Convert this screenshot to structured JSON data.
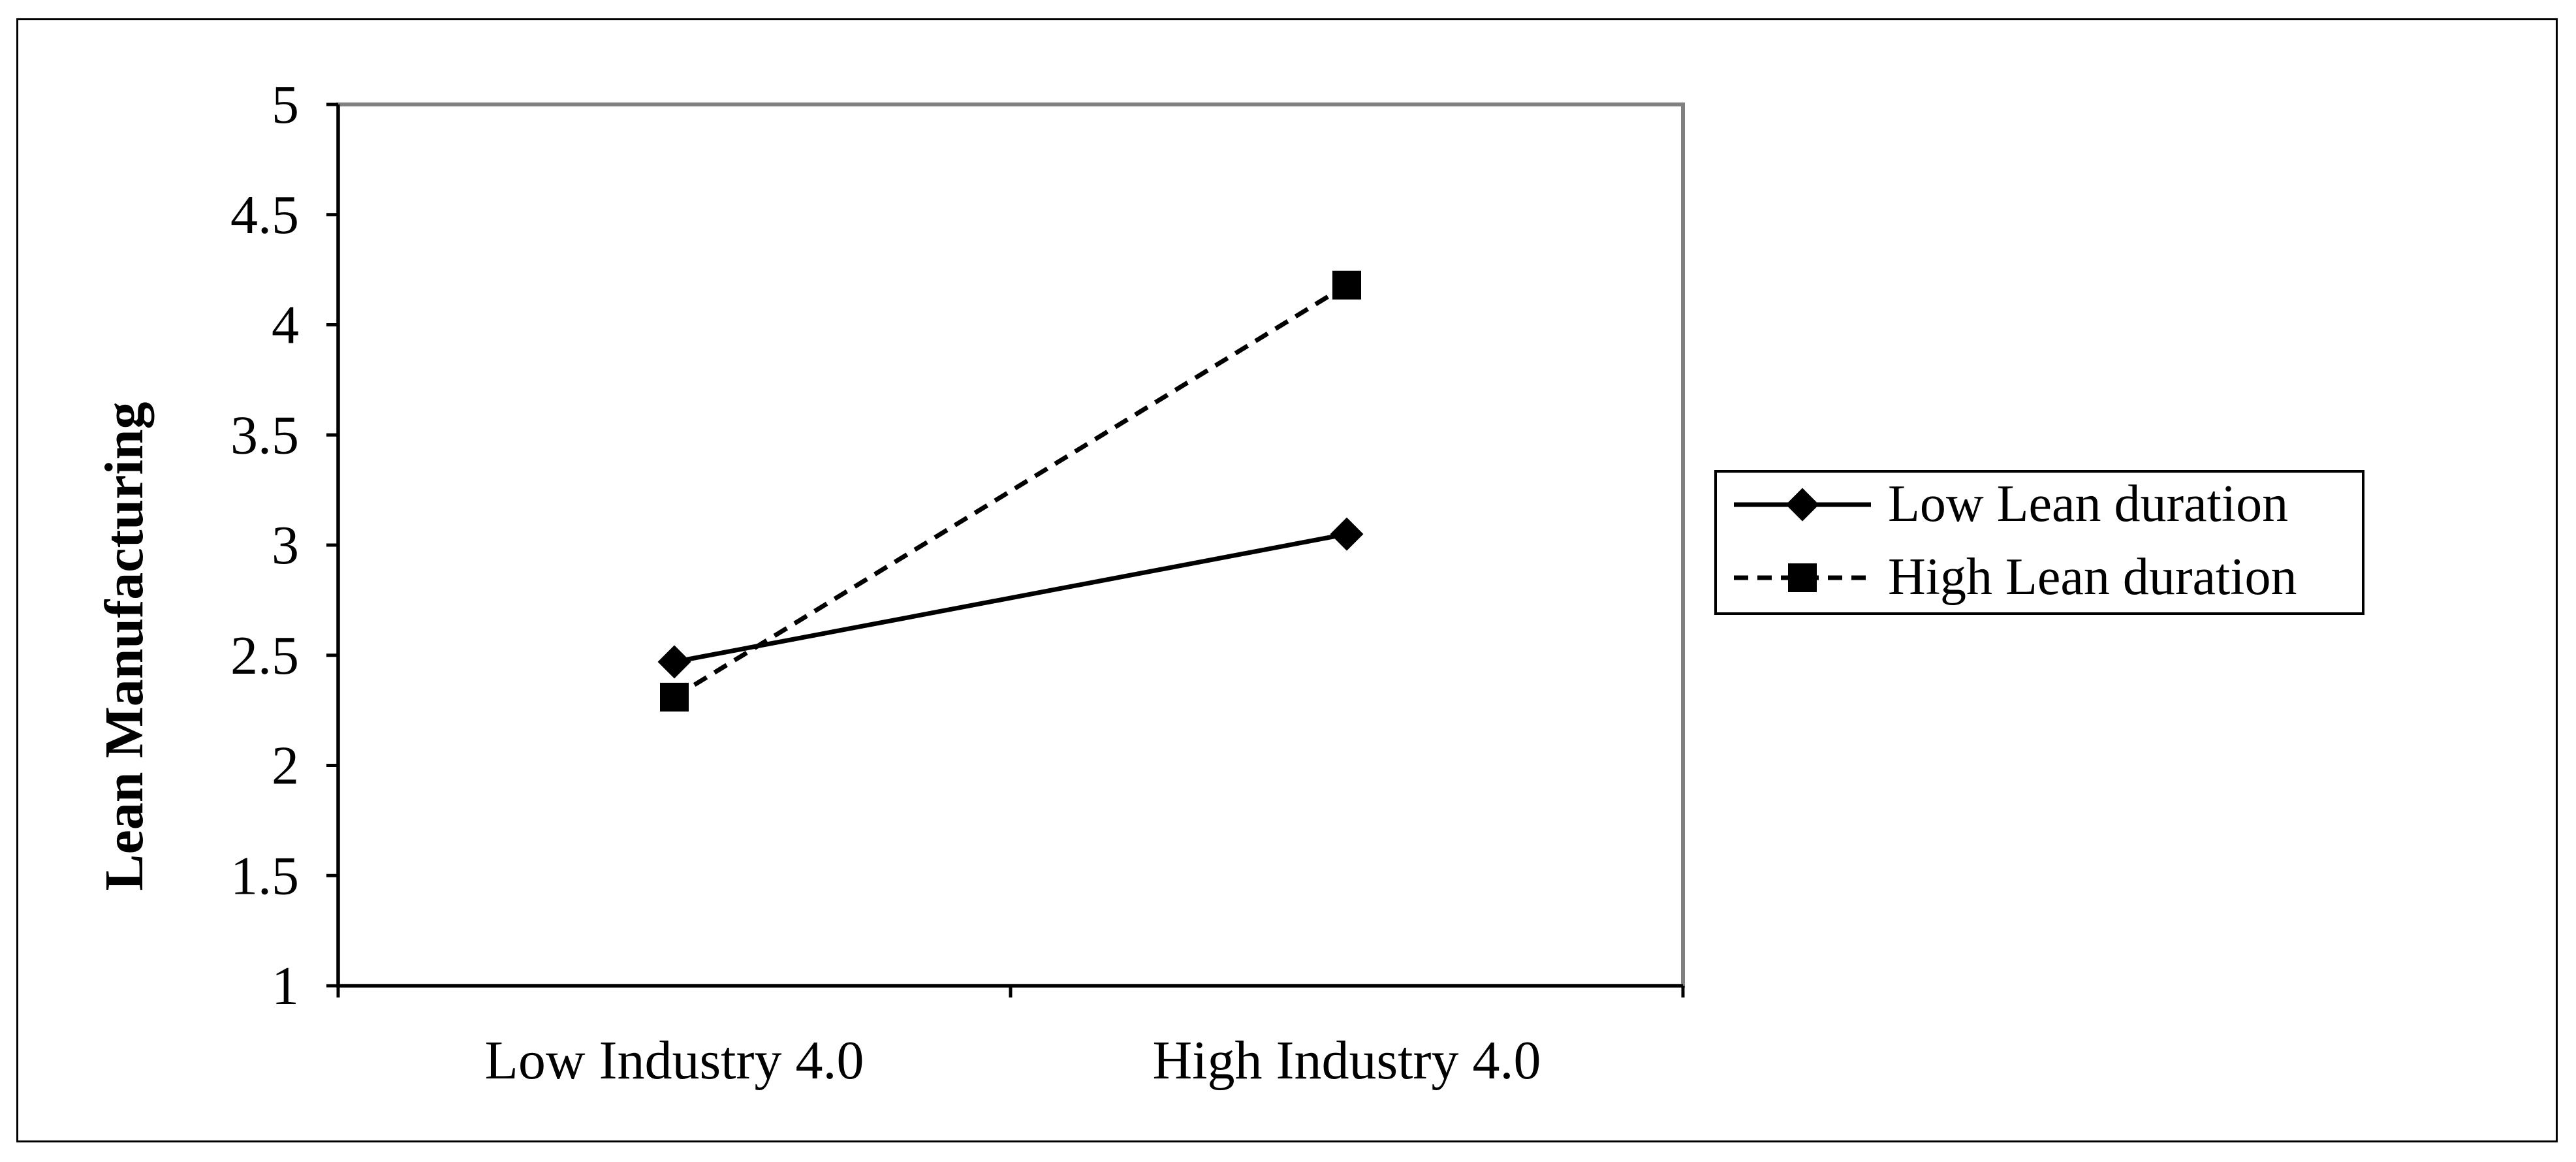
{
  "chart_data": {
    "type": "line",
    "title": "",
    "xlabel": "",
    "ylabel": "Lean Manufacturing",
    "categories": [
      "Low Industry 4.0",
      "High Industry 4.0"
    ],
    "ylim": [
      1,
      5
    ],
    "yticks": [
      "1",
      "1.5",
      "2",
      "2.5",
      "3",
      "3.5",
      "4",
      "4.5",
      "5"
    ],
    "grid": false,
    "legend_position": "right",
    "series": [
      {
        "name": "Low Lean duration",
        "values": [
          2.47,
          3.05
        ],
        "line_style": "solid",
        "marker": "diamond",
        "color": "#000000"
      },
      {
        "name": "High Lean duration",
        "values": [
          2.31,
          4.18
        ],
        "line_style": "dashed",
        "marker": "square",
        "color": "#000000"
      }
    ]
  },
  "colors": {
    "plot_border": "#808080",
    "axis": "#000000"
  }
}
